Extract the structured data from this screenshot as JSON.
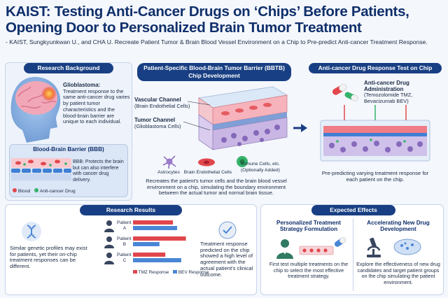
{
  "header": {
    "title_line1": "KAIST: Testing Anti-Cancer Drugs on ‘Chips’ Before Patients,",
    "title_line2": "Opening Door to Personalized Brain Tumor Treatment",
    "subtitle": "- KAIST, Sungkyunkwan U., and CHA U. Recreate Patient Tumor & Brain Blood Vessel Environment on a Chip to Pre-predict Anti-cancer Treatment Response."
  },
  "background": {
    "pill": "Research Background",
    "glio_title": "Glioblastoma:",
    "glio_text": "Treatment response to the same anti-cancer drug varies by patient tumor characteristics and the blood-brain barrier are unique to each individual.",
    "bbb_title": "Blood-Brain Barrier (BBB)",
    "bbb_text": "BBB: Protects the brain but can also interfere with cancer drug delivery.",
    "legend_blood": "Blood",
    "legend_drug": "Anti-cancer Drug"
  },
  "chip": {
    "pill_line1": "Patient-Specific Blood-Brain Tumor Barrier (BBTB)",
    "pill_line2": "Chip Development",
    "vascular_title": "Vascular Channel",
    "vascular_sub": "(Brain Endothelial Cells)",
    "tumor_title": "Tumor Channel",
    "tumor_sub": "(Glioblastoma Cells)",
    "astrocytes": "Astrocytes",
    "endothelial": "Brain Endothelial Cells",
    "immune_line1": "Immune Cells, etc.",
    "immune_line2": "(Optionally Added)",
    "caption": "Recreates the patient's tumor cells and the brain blood vessel environment on a chip, simulating the boundary environment between the actual tumor and normal brain tissue."
  },
  "response_test": {
    "pill": "Anti-cancer Drug Response Test on Chip",
    "admin_title_line1": "Anti-cancer Drug",
    "admin_title_line2": "Administration",
    "admin_drugs_line1": "(Temozolomide TMZ,",
    "admin_drugs_line2": "Bevacizumab BEV)",
    "caption": "Pre-predicting varying treatment response for each patient on the chip."
  },
  "results": {
    "pill": "Research Results",
    "left_text": "Similar genetic profiles may exist for patients, yet their on-chip treatment responses can be different.",
    "right_text": "Treatment response predicted on the chip showed a high level of agreement with the actual patient's clinical outcome.",
    "patient_word": "Patient",
    "legend_tmz": "TMZ Response",
    "legend_bev": "BEV Response"
  },
  "chart_data": {
    "type": "bar",
    "categories": [
      "A",
      "B",
      "C"
    ],
    "series": [
      {
        "name": "TMZ Response",
        "values": [
          0.68,
          0.9,
          0.55
        ]
      },
      {
        "name": "BEV Response",
        "values": [
          0.75,
          0.45,
          0.82
        ]
      }
    ],
    "colors": {
      "TMZ Response": "#e0474c",
      "BEV Response": "#4a86d6"
    },
    "legend": "bottom"
  },
  "effects": {
    "pill": "Expected Effects",
    "personal_title_line1": "Personalized Treatment",
    "personal_title_line2": "Strategy Formulation",
    "personal_text": "First test multiple treatments on the chip to select the most effective treatment strategy.",
    "drug_title_line1": "Accelerating New Drug",
    "drug_title_line2": "Development",
    "drug_text": "Explore the effectiveness of new drug candidates and target patient groups on the chip simulating the patient environment."
  },
  "colors": {
    "navy": "#183f83",
    "tmz": "#e0474c",
    "bev": "#4a86d6"
  },
  "icons": [
    "brain-head-icon",
    "dna-icon",
    "patient-icon",
    "checkmark-icon",
    "doctor-icon",
    "microscope-icon",
    "pill-icon",
    "arrow-right-icon"
  ]
}
